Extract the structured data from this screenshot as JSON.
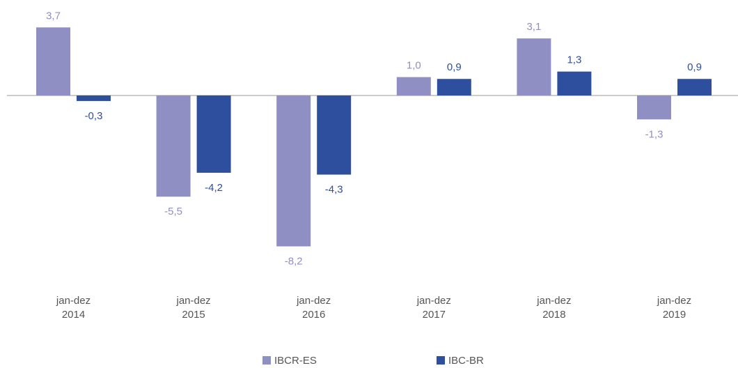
{
  "chart_data": {
    "type": "bar",
    "categories": [
      "jan-dez\n2014",
      "jan-dez\n2015",
      "jan-dez\n2016",
      "jan-dez\n2017",
      "jan-dez\n2018",
      "jan-dez\n2019"
    ],
    "series": [
      {
        "name": "IBCR-ES",
        "color": "#8f8fc4",
        "values": [
          3.7,
          -5.5,
          -8.2,
          1.0,
          3.1,
          -1.3
        ],
        "value_labels": [
          "3,7",
          "-5,5",
          "-8,2",
          "1,0",
          "3,1",
          "-1,3"
        ]
      },
      {
        "name": "IBC-BR",
        "color": "#2e4f9e",
        "values": [
          -0.3,
          -4.2,
          -4.3,
          0.9,
          1.3,
          0.9
        ],
        "value_labels": [
          "-0,3",
          "-4,2",
          "-4,3",
          "0,9",
          "1,3",
          "0,9"
        ]
      }
    ],
    "legend": "bottom"
  }
}
